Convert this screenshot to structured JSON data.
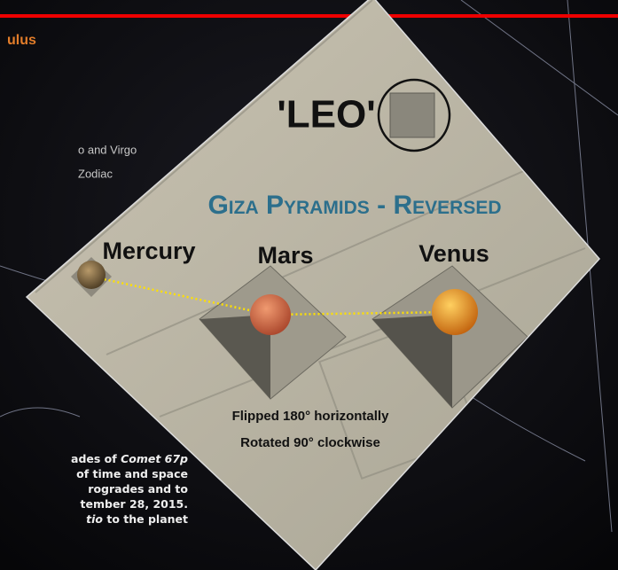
{
  "header": {
    "heading_fragment": "ulus"
  },
  "left_notes": [
    "o and Virgo",
    "Zodiac"
  ],
  "diagram": {
    "leo_label": "'LEO'",
    "title": "Giza Pyramids - Reversed",
    "planets": [
      "Mercury",
      "Mars",
      "Venus"
    ],
    "notes": [
      "Flipped 180° horizontally",
      "Rotated 90° clockwise"
    ]
  },
  "caption": [
    [
      {
        "text": "ades of ",
        "italic": false
      },
      {
        "text": "Comet 67p",
        "italic": true
      }
    ],
    [
      {
        "text": "of time and space",
        "italic": false
      }
    ],
    [
      {
        "text": "rogrades and to",
        "italic": false
      }
    ],
    [
      {
        "text": "tember 28, 2015.",
        "italic": false
      }
    ],
    [
      {
        "text": "tio",
        "italic": true
      },
      {
        "text": " to the planet",
        "italic": false
      }
    ]
  ]
}
